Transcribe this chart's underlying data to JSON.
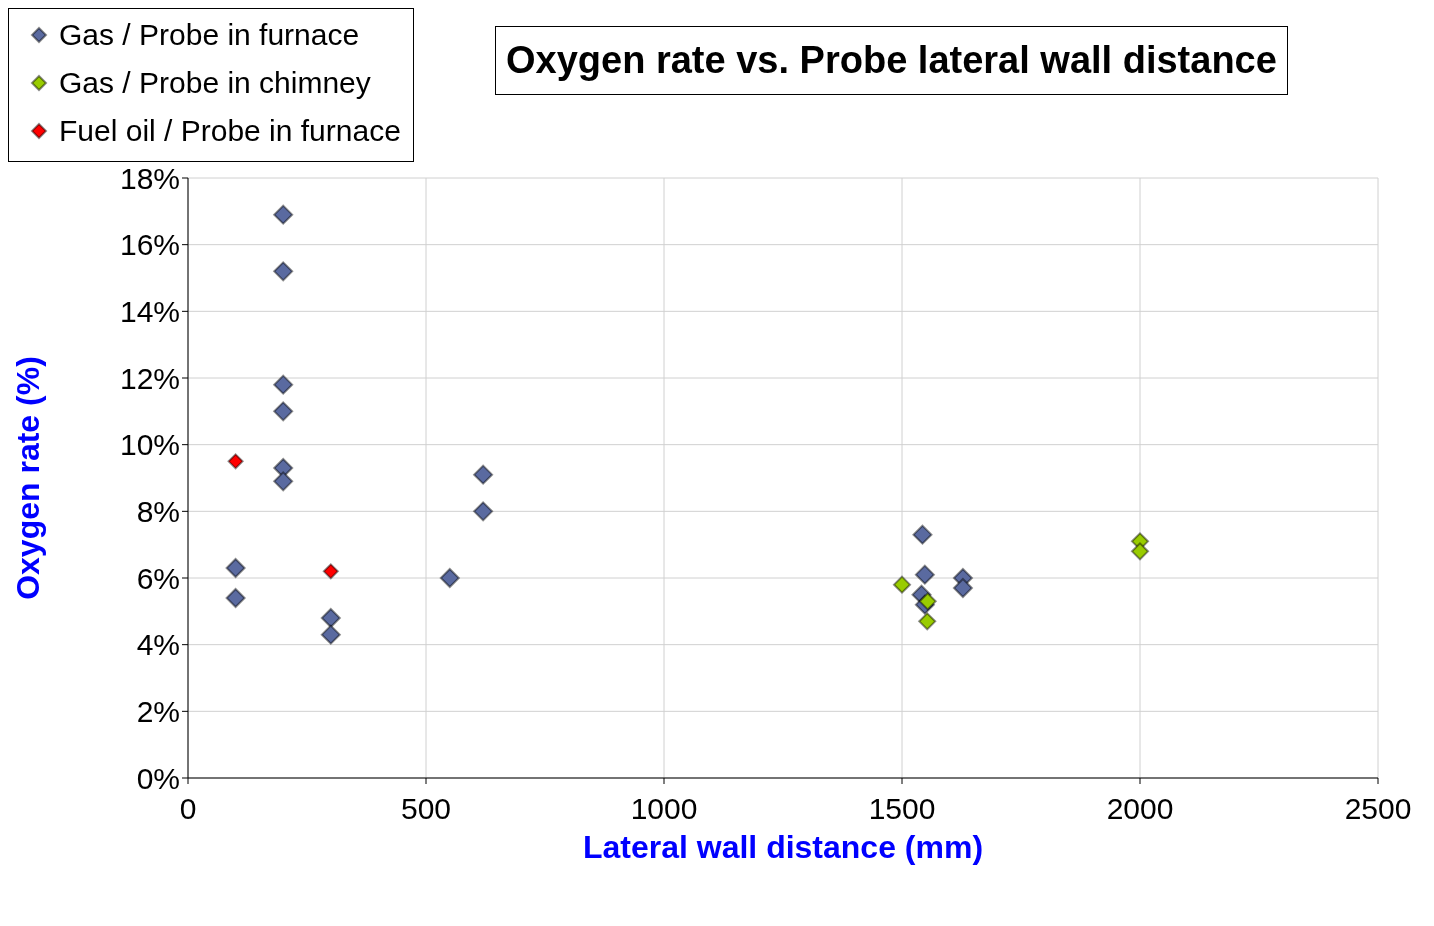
{
  "chart_data": {
    "type": "scatter",
    "title": "Oxygen rate vs. Probe lateral wall distance",
    "xlabel": "Lateral wall distance (mm)",
    "ylabel": "Oxygen rate (%)",
    "xlim": [
      0,
      2500
    ],
    "xticks": [
      0,
      500,
      1000,
      1500,
      2000,
      2500
    ],
    "ylim": [
      0,
      18
    ],
    "yticks": [
      {
        "value": 0,
        "label": "0%"
      },
      {
        "value": 2,
        "label": "2%"
      },
      {
        "value": 4,
        "label": "4%"
      },
      {
        "value": 6,
        "label": "6%"
      },
      {
        "value": 8,
        "label": "8%"
      },
      {
        "value": 10,
        "label": "10%"
      },
      {
        "value": 12,
        "label": "12%"
      },
      {
        "value": 14,
        "label": "14%"
      },
      {
        "value": 16,
        "label": "16%"
      },
      {
        "value": 18,
        "label": "18%"
      }
    ],
    "grid": true,
    "legend": "top left",
    "marker": "diamond",
    "series": [
      {
        "name": "Gas / Probe in furnace",
        "color": "#5a6aa0",
        "x": [
          200,
          200,
          200,
          200,
          200,
          200,
          100,
          100,
          300,
          300,
          550,
          620,
          620,
          1543,
          1548,
          1628,
          1628,
          1541,
          1548
        ],
        "values": [
          16.9,
          15.2,
          11.8,
          11.0,
          9.3,
          8.9,
          6.3,
          5.4,
          4.8,
          4.3,
          6.0,
          9.1,
          8.0,
          7.3,
          6.1,
          6.0,
          5.7,
          5.5,
          5.2
        ]
      },
      {
        "name": "Gas / Probe in chimney",
        "color": "#99cc00",
        "x": [
          1500,
          1554,
          1553,
          2000,
          2000
        ],
        "values": [
          5.8,
          5.3,
          4.7,
          7.1,
          6.8
        ]
      },
      {
        "name": "Fuel oil / Probe in furnace",
        "color": "#ff0000",
        "x": [
          100,
          300
        ],
        "values": [
          9.5,
          6.2
        ]
      }
    ]
  }
}
